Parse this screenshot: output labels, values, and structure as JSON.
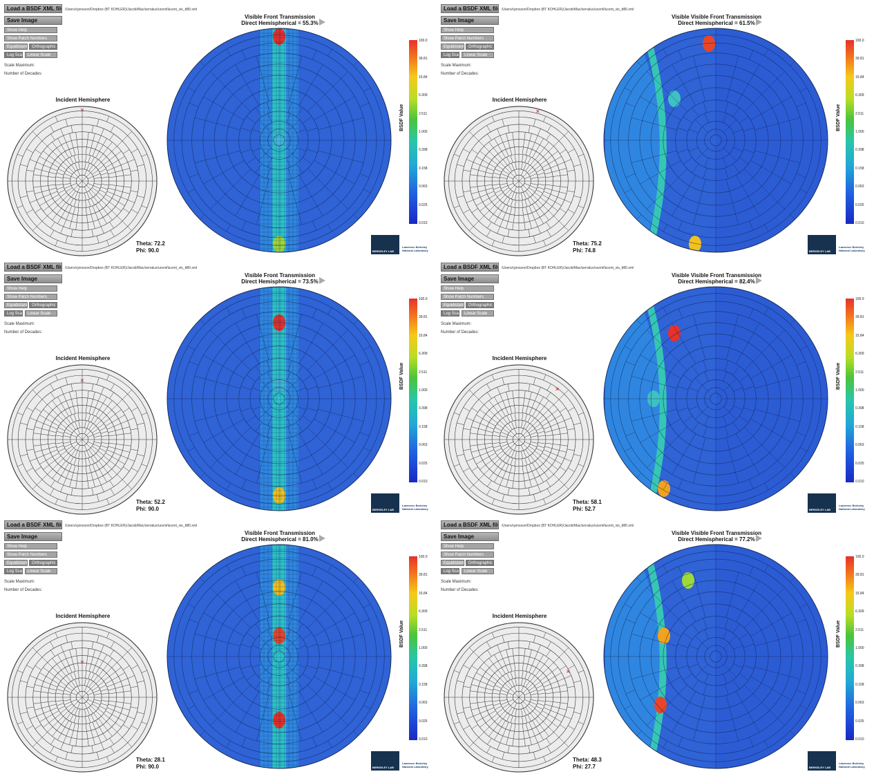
{
  "ui": {
    "load_button": "Load a BSDF XML file",
    "save_button": "Save Image",
    "show_help": "Show Help",
    "show_patch_numbers": "Show Patch Numbers",
    "equidistant": "Equidistant",
    "orthographic": "Orthographic",
    "log_scale": "Log Scale",
    "linear_scale": "Linear Scale",
    "scale_maximum": "Scale Maximum:",
    "number_of_decades": "Number of Decades:",
    "incident_hemisphere": "Incident Hemisphere",
    "axis_label": "BSDF Value",
    "direct_prefix": "Direct Hemispherical = ",
    "file_path": "/Users/cjonsson/Dropbox (BT KOHLER)/Jacob/Mac/serralux/ucent/lucent_vis_tt80.xml",
    "logo_text": "BERKELEY LAB",
    "lbnl_line1": "Lawrence Berkeley",
    "lbnl_line2": "National Laboratory"
  },
  "scale_ticks": [
    "100.0",
    "39.81",
    "15.84",
    "6.309",
    "2.511",
    "1.000",
    "0.398",
    "0.158",
    "0.063",
    "0.025",
    "0.010"
  ],
  "colors": {
    "button_gray": "#a5a5a5",
    "field_blue": "#2f63d6",
    "incident_marker": "#b01a1a"
  },
  "panels": [
    {
      "title": "Visible Front Transmission",
      "direct_label": "Direct Hemispherical = 55.3%",
      "theta_label": "Theta: 72.2",
      "phi_label": "Phi: 90.0",
      "theta": 72.2,
      "phi": 90.0
    },
    {
      "title": "Visible Visible Front Transmission",
      "direct_label": "Direct Hemispherical = 61.5%",
      "theta_label": "Theta: 75.2",
      "phi_label": "Phi: 74.8",
      "theta": 75.2,
      "phi": 74.8
    },
    {
      "title": "Visible Front Transmission",
      "direct_label": "Direct Hemispherical = 73.5%",
      "theta_label": "Theta: 52.2",
      "phi_label": "Phi: 90.0",
      "theta": 52.2,
      "phi": 90.0
    },
    {
      "title": "Visible Visible Front Transmission",
      "direct_label": "Direct Hemispherical = 82.4%",
      "theta_label": "Theta: 58.1",
      "phi_label": "Phi: 52.7",
      "theta": 58.1,
      "phi": 52.7
    },
    {
      "title": "Visible Front Transmission",
      "direct_label": "Direct Hemispherical = 81.0%",
      "theta_label": "Theta: 28.1",
      "phi_label": "Phi: 90.0",
      "theta": 28.1,
      "phi": 90.0
    },
    {
      "title": "Visible Visible Front Transmission",
      "direct_label": "Direct Hemispherical = 77.2%",
      "theta_label": "Theta: 48.3",
      "phi_label": "Phi: 27.7",
      "theta": 48.3,
      "phi": 27.7
    }
  ]
}
